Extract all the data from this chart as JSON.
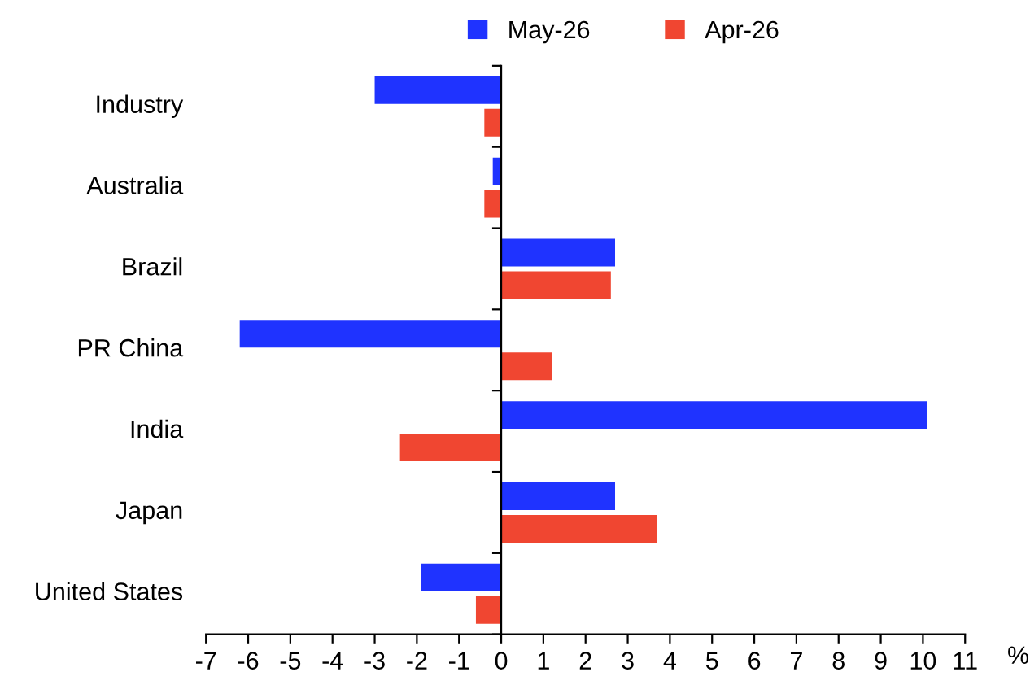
{
  "chart_data": {
    "type": "bar",
    "orientation": "horizontal",
    "xlabel": "%",
    "categories": [
      "Industry",
      "Australia",
      "Brazil",
      "PR China",
      "India",
      "Japan",
      "United States"
    ],
    "series": [
      {
        "name": "May-26",
        "color": "#1f33ff",
        "values": [
          -3.0,
          -0.2,
          2.7,
          -6.2,
          10.1,
          2.7,
          -1.9
        ]
      },
      {
        "name": "Apr-26",
        "color": "#f04631",
        "values": [
          -0.4,
          -0.4,
          2.6,
          1.2,
          -2.4,
          3.7,
          -0.6
        ]
      }
    ],
    "xlim": [
      -7,
      11
    ],
    "xticks": [
      -7,
      -6,
      -5,
      -4,
      -3,
      -2,
      -1,
      0,
      1,
      2,
      3,
      4,
      5,
      6,
      7,
      8,
      9,
      10,
      11
    ],
    "legend": "top"
  }
}
